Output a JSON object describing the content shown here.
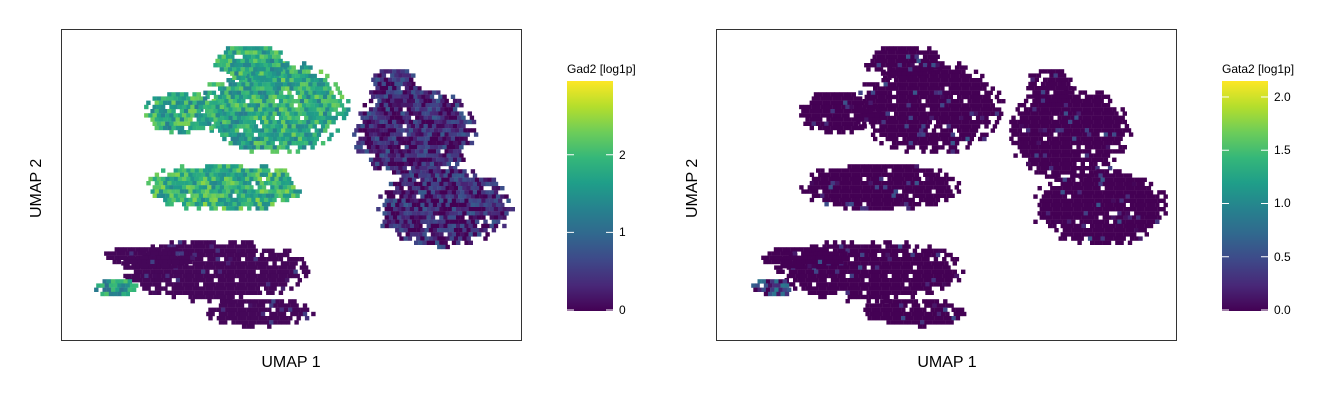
{
  "chart_data": [
    {
      "type": "scatter",
      "title": "",
      "xlabel": "UMAP 1",
      "ylabel": "UMAP 2",
      "colorbar": {
        "title": "Gad2 [log1p]",
        "colormap": "viridis",
        "range": [
          0,
          2.95
        ],
        "ticks": [
          0,
          1,
          2
        ],
        "tick_labels": [
          "0",
          "1",
          "2"
        ]
      },
      "grid": false,
      "legend": "colorbar right",
      "mean_expression_by_region": [
        {
          "region": "upper-left cluster",
          "value": 1.8
        },
        {
          "region": "mid-left cluster",
          "value": 1.9
        },
        {
          "region": "lower-left cluster",
          "value": 0.05
        },
        {
          "region": "far-lower-left small cluster",
          "value": 1.6
        },
        {
          "region": "right cluster",
          "value": 0.3
        }
      ]
    },
    {
      "type": "scatter",
      "title": "",
      "xlabel": "UMAP 1",
      "ylabel": "UMAP 2",
      "colorbar": {
        "title": "Gata2 [log1p]",
        "colormap": "viridis",
        "range": [
          0,
          2.15
        ],
        "ticks": [
          0,
          0.5,
          1,
          1.5,
          2
        ],
        "tick_labels": [
          "0.0",
          "0.5",
          "1.0",
          "1.5",
          "2.0"
        ]
      },
      "grid": false,
      "legend": "colorbar right",
      "mean_expression_by_region": [
        {
          "region": "upper-left cluster",
          "value": 0.0
        },
        {
          "region": "mid-left cluster",
          "value": 0.0
        },
        {
          "region": "lower-left cluster",
          "value": 0.0
        },
        {
          "region": "far-lower-left small cluster",
          "value": 0.4
        },
        {
          "region": "right cluster",
          "value": 0.0
        }
      ]
    }
  ]
}
